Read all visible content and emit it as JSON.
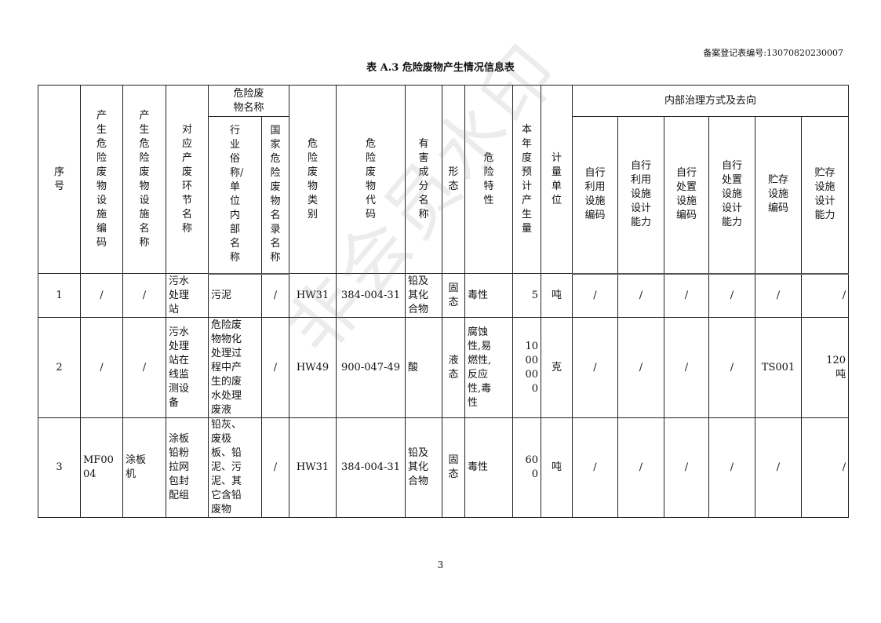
{
  "registration_no": "备案登记表编号:13070820230007",
  "title": "表 A.3  危险废物产生情况信息表",
  "header": {
    "seq": "序号",
    "facility_code": "产生危险废物设施编码",
    "facility_name": "产生危险废物设施名称",
    "stage": "对应产废环节名称",
    "waste_name_group": "危险废物名称",
    "common_name": "行业俗称/单位内部名称",
    "national_name": "国家危险废物名录名称",
    "category": "危险废物类别",
    "code": "危险废物代码",
    "harmful": "有害成分名称",
    "form": "形态",
    "hazard": "危险特性",
    "annual_qty": "本年度预计产生量",
    "unit": "计量单位",
    "internal_group": "内部治理方式及去向",
    "self_use_code": "自行利用设施编码",
    "self_use_capacity": "自行利用设施设计能力",
    "self_dispose_code": "自行处置设施编码",
    "self_dispose_capacity": "自行处置设施设计能力",
    "storage_code": "贮存设施编码",
    "storage_capacity": "贮存设施设计能力"
  },
  "rows": [
    [
      "1",
      "/",
      "/",
      "污水处理站",
      "污泥",
      "/",
      "HW31",
      "384-004-31",
      "铅及其化合物",
      "固态",
      "毒性",
      "5",
      "吨",
      "/",
      "/",
      "/",
      "/",
      "/",
      "/"
    ],
    [
      "2",
      "/",
      "/",
      "污水处理站在线监测设备",
      "危险废物物化处理过程中产生的废水处理废液",
      "/",
      "HW49",
      "900-047-49",
      "酸",
      "液态",
      "腐蚀性,易燃性,反应性,毒性",
      "1000000",
      "克",
      "/",
      "/",
      "/",
      "/",
      "TS001",
      "120吨"
    ],
    [
      "3",
      "MF0004",
      "涂板机",
      "涂板铅粉拉网包封配组",
      "铅灰、废极板、铅泥、污泥、其它含铅废物",
      "/",
      "HW31",
      "384-004-31",
      "铅及其化合物",
      "固态",
      "毒性",
      "600",
      "吨",
      "/",
      "/",
      "/",
      "/",
      "/",
      "/"
    ]
  ],
  "page_number": "3",
  "watermark": "非会员水印"
}
